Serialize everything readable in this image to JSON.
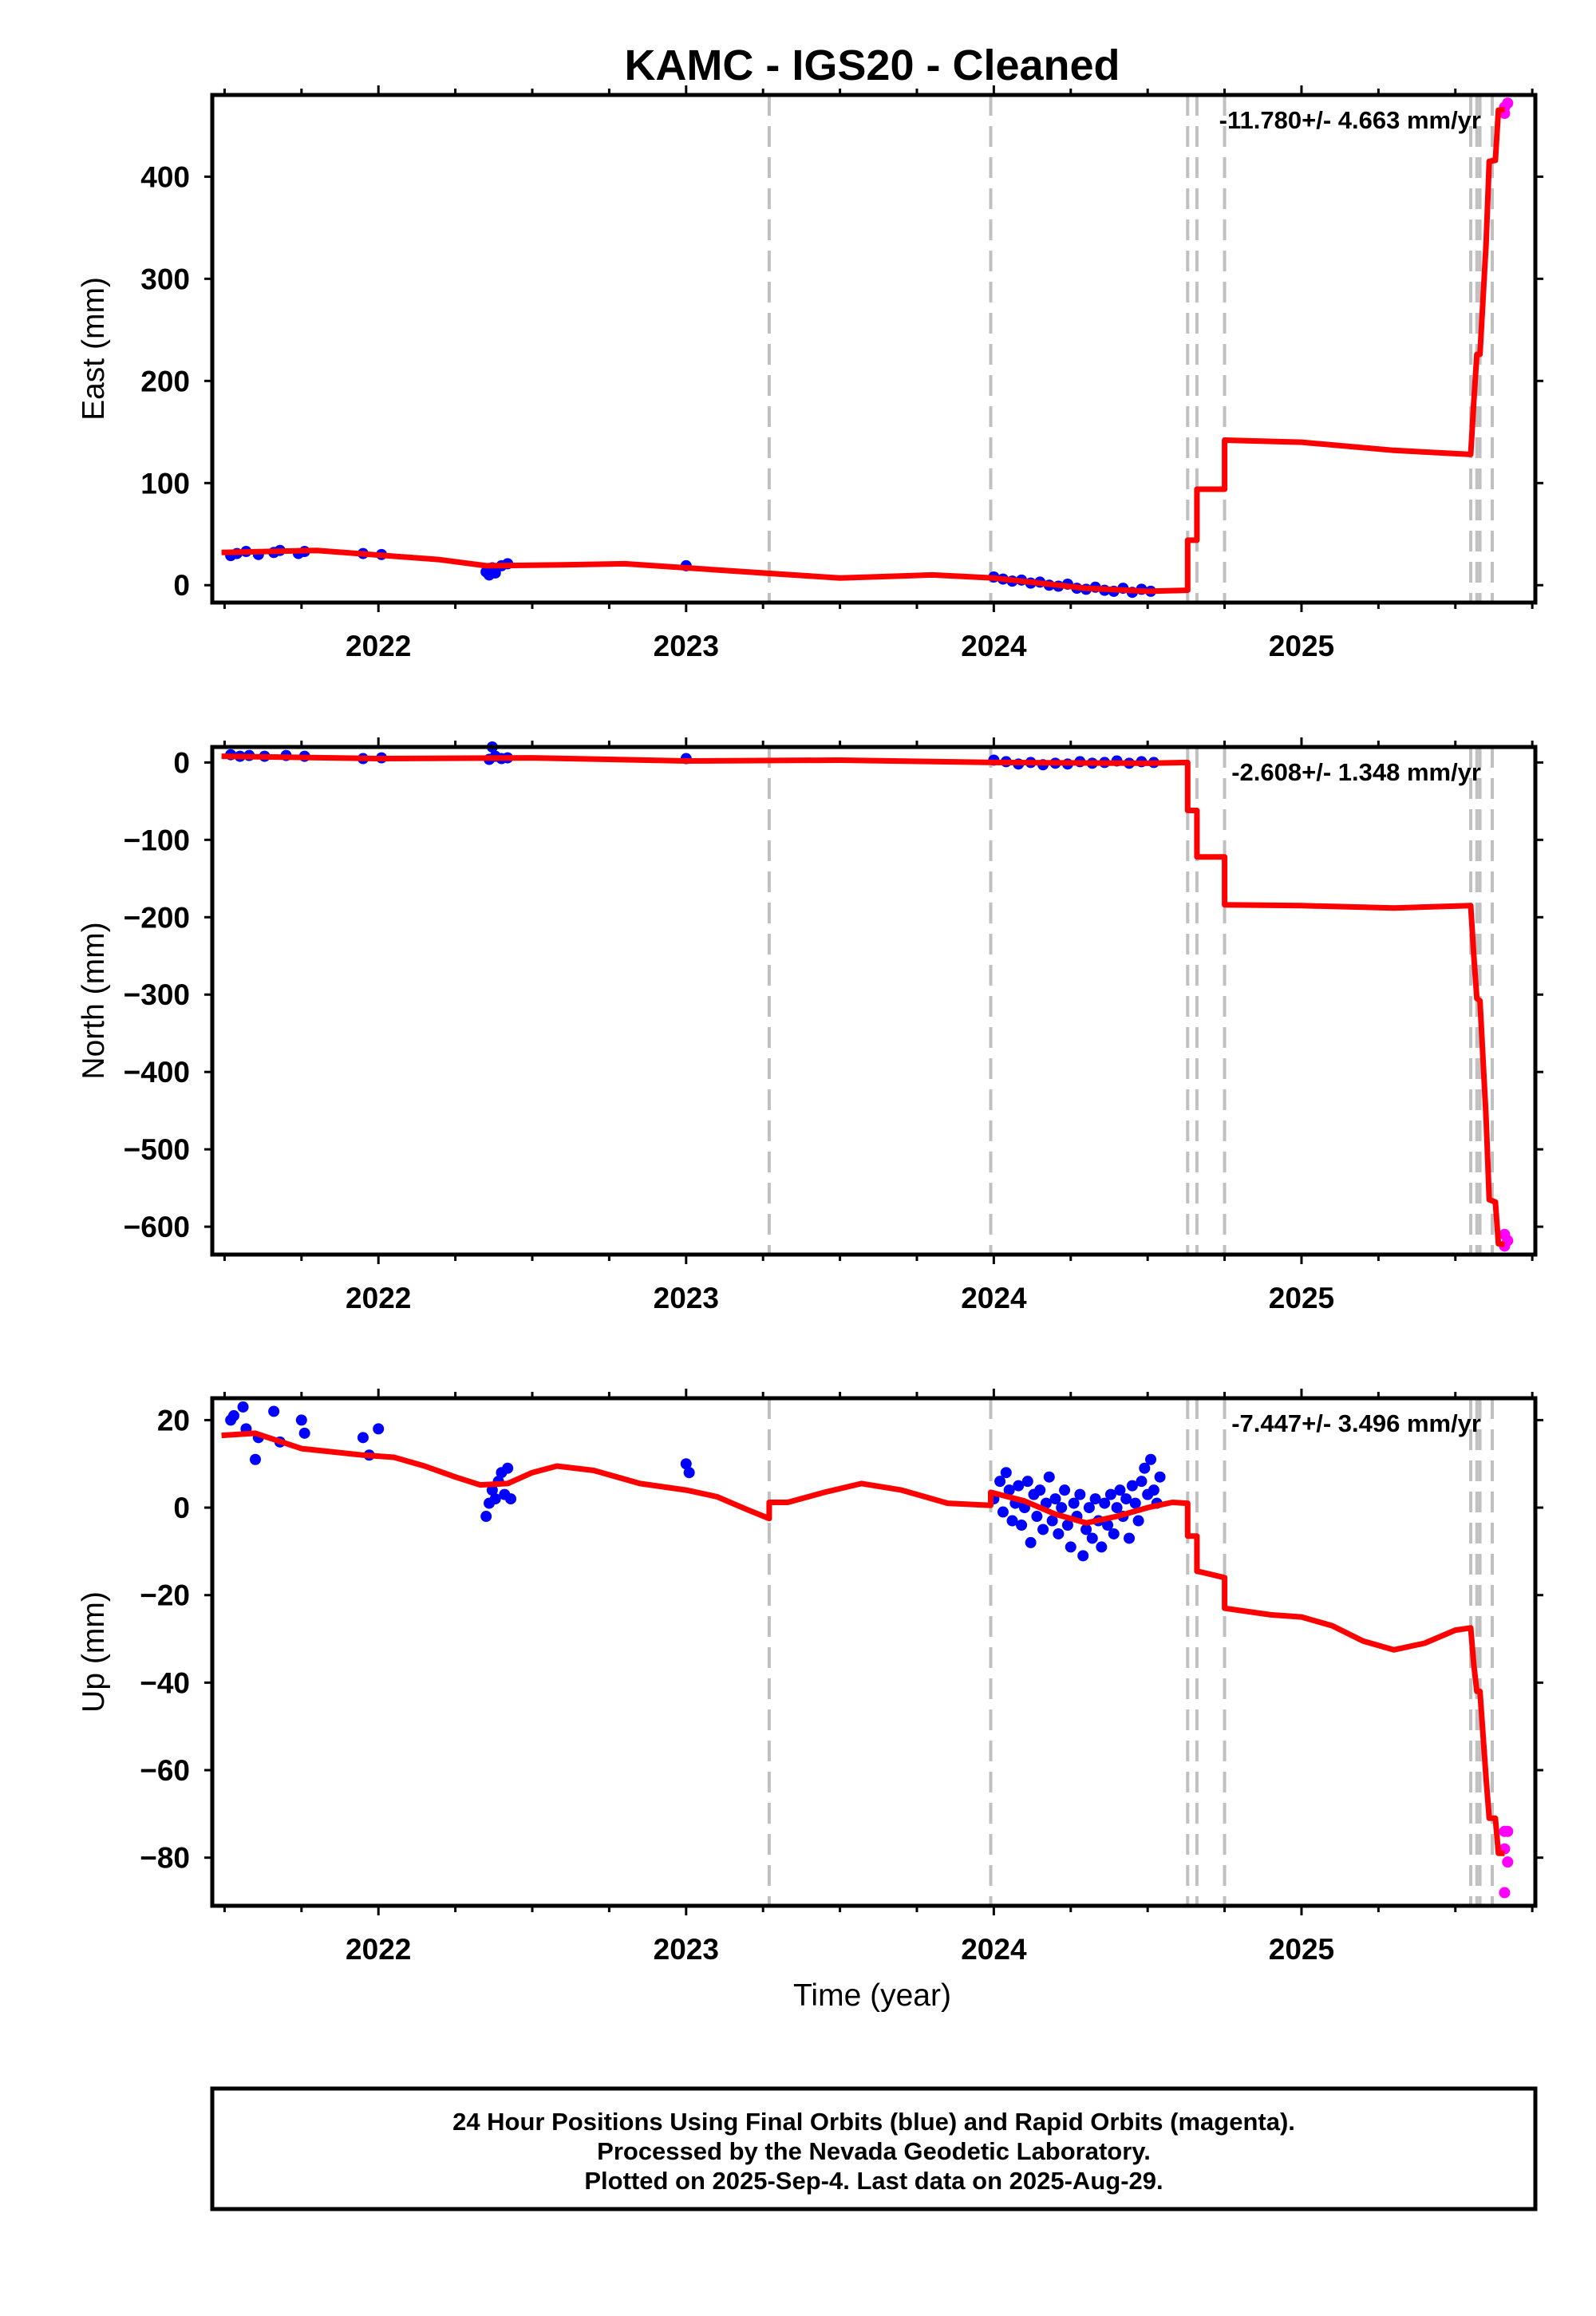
{
  "chart_data": {
    "title": "KAMC  - IGS20 - Cleaned",
    "type": "scatter",
    "xlabel": "Time (year)",
    "x_tick_labels": [
      "2022",
      "2023",
      "2024",
      "2025"
    ],
    "x_ticks": [
      2022,
      2023,
      2024,
      2025
    ],
    "xlim": [
      2021.46,
      2025.76
    ],
    "final_orbits_color": "#0000ff",
    "rapid_orbits_color": "#ff00ff",
    "model_color": "#ff0000",
    "break_line_color": "#c0c0c0",
    "breaks": [
      2023.27,
      2023.99,
      2024.63,
      2024.66,
      2024.75,
      2025.55,
      2025.57,
      2025.58,
      2025.62
    ],
    "panels": [
      {
        "ylabel": "East (mm)",
        "ylim": [
          -17,
          480
        ],
        "yticks": [
          0,
          100,
          200,
          300,
          400
        ],
        "ytick_labels": [
          "0",
          "100",
          "200",
          "300",
          "400"
        ],
        "rate_text": "-11.780+/- 4.663 mm/yr",
        "final_points": [
          [
            2021.52,
            29
          ],
          [
            2021.54,
            31
          ],
          [
            2021.57,
            33
          ],
          [
            2021.61,
            30
          ],
          [
            2021.66,
            32
          ],
          [
            2021.68,
            34
          ],
          [
            2021.74,
            31
          ],
          [
            2021.76,
            33
          ],
          [
            2021.95,
            31
          ],
          [
            2022.01,
            30
          ],
          [
            2022.35,
            13
          ],
          [
            2022.36,
            10
          ],
          [
            2022.37,
            17
          ],
          [
            2022.38,
            12
          ],
          [
            2022.4,
            19
          ],
          [
            2022.42,
            21
          ],
          [
            2023.0,
            19
          ],
          [
            2024.0,
            8
          ],
          [
            2024.03,
            6
          ],
          [
            2024.06,
            4
          ],
          [
            2024.09,
            5
          ],
          [
            2024.12,
            2
          ],
          [
            2024.15,
            3
          ],
          [
            2024.18,
            0
          ],
          [
            2024.21,
            -1
          ],
          [
            2024.24,
            1
          ],
          [
            2024.27,
            -3
          ],
          [
            2024.3,
            -4
          ],
          [
            2024.33,
            -2
          ],
          [
            2024.36,
            -5
          ],
          [
            2024.39,
            -6
          ],
          [
            2024.42,
            -3
          ],
          [
            2024.45,
            -7
          ],
          [
            2024.48,
            -4
          ],
          [
            2024.51,
            -6
          ]
        ],
        "rapid_points": [
          [
            2025.66,
            468
          ],
          [
            2025.67,
            472
          ],
          [
            2025.66,
            462
          ]
        ],
        "model": [
          [
            2021.49,
            32
          ],
          [
            2021.8,
            34
          ],
          [
            2022.2,
            25
          ],
          [
            2022.35,
            19
          ],
          [
            2022.6,
            20
          ],
          [
            2022.8,
            21
          ],
          [
            2023.1,
            15
          ],
          [
            2023.5,
            7
          ],
          [
            2023.8,
            10
          ],
          [
            2024.0,
            7
          ],
          [
            2024.3,
            -3
          ],
          [
            2024.5,
            -6
          ],
          [
            2024.63,
            -5
          ],
          [
            2024.63,
            44
          ],
          [
            2024.66,
            44
          ],
          [
            2024.66,
            94
          ],
          [
            2024.75,
            94
          ],
          [
            2024.75,
            142
          ],
          [
            2025.0,
            140
          ],
          [
            2025.3,
            132
          ],
          [
            2025.55,
            128
          ],
          [
            2025.56,
            180
          ],
          [
            2025.57,
            226
          ],
          [
            2025.58,
            226
          ],
          [
            2025.6,
            335
          ],
          [
            2025.61,
            415
          ],
          [
            2025.63,
            416
          ],
          [
            2025.64,
            465
          ],
          [
            2025.66,
            466
          ]
        ]
      },
      {
        "ylabel": "North (mm)",
        "ylim": [
          -636,
          20
        ],
        "yticks": [
          -600,
          -500,
          -400,
          -300,
          -200,
          -100,
          0
        ],
        "ytick_labels": [
          "−600",
          "−500",
          "−400",
          "−300",
          "−200",
          "−100",
          "0"
        ],
        "rate_text": "-2.608+/- 1.348 mm/yr",
        "final_points": [
          [
            2021.52,
            10
          ],
          [
            2021.55,
            8
          ],
          [
            2021.58,
            9
          ],
          [
            2021.63,
            8
          ],
          [
            2021.7,
            9
          ],
          [
            2021.76,
            8
          ],
          [
            2021.95,
            5
          ],
          [
            2022.01,
            6
          ],
          [
            2022.36,
            4
          ],
          [
            2022.37,
            20
          ],
          [
            2022.38,
            8
          ],
          [
            2022.4,
            5
          ],
          [
            2022.42,
            6
          ],
          [
            2023.0,
            5
          ],
          [
            2024.0,
            3
          ],
          [
            2024.04,
            1
          ],
          [
            2024.08,
            -2
          ],
          [
            2024.12,
            0
          ],
          [
            2024.16,
            -3
          ],
          [
            2024.2,
            -1
          ],
          [
            2024.24,
            -2
          ],
          [
            2024.28,
            1
          ],
          [
            2024.32,
            -1
          ],
          [
            2024.36,
            0
          ],
          [
            2024.4,
            2
          ],
          [
            2024.44,
            -1
          ],
          [
            2024.48,
            1
          ],
          [
            2024.52,
            0
          ]
        ],
        "rapid_points": [
          [
            2025.66,
            -610
          ],
          [
            2025.67,
            -618
          ],
          [
            2025.66,
            -625
          ]
        ],
        "model": [
          [
            2021.49,
            8
          ],
          [
            2022.0,
            5
          ],
          [
            2022.5,
            6
          ],
          [
            2023.0,
            2
          ],
          [
            2023.5,
            3
          ],
          [
            2024.0,
            0
          ],
          [
            2024.5,
            -1
          ],
          [
            2024.63,
            0
          ],
          [
            2024.63,
            -62
          ],
          [
            2024.66,
            -62
          ],
          [
            2024.66,
            -122
          ],
          [
            2024.75,
            -122
          ],
          [
            2024.75,
            -184
          ],
          [
            2025.0,
            -185
          ],
          [
            2025.3,
            -188
          ],
          [
            2025.55,
            -185
          ],
          [
            2025.56,
            -250
          ],
          [
            2025.57,
            -305
          ],
          [
            2025.58,
            -308
          ],
          [
            2025.6,
            -460
          ],
          [
            2025.61,
            -565
          ],
          [
            2025.63,
            -568
          ],
          [
            2025.64,
            -622
          ],
          [
            2025.66,
            -623
          ]
        ]
      },
      {
        "ylabel": "Up (mm)",
        "ylim": [
          -91,
          25
        ],
        "yticks": [
          -80,
          -60,
          -40,
          -20,
          0,
          20
        ],
        "ytick_labels": [
          "−80",
          "−60",
          "−40",
          "−20",
          "0",
          "20"
        ],
        "rate_text": "-7.447+/- 3.496 mm/yr",
        "final_points": [
          [
            2021.52,
            20
          ],
          [
            2021.53,
            21
          ],
          [
            2021.56,
            23
          ],
          [
            2021.57,
            18
          ],
          [
            2021.6,
            11
          ],
          [
            2021.61,
            16
          ],
          [
            2021.66,
            22
          ],
          [
            2021.68,
            15
          ],
          [
            2021.75,
            20
          ],
          [
            2021.76,
            17
          ],
          [
            2021.95,
            16
          ],
          [
            2021.97,
            12
          ],
          [
            2022.0,
            18
          ],
          [
            2022.35,
            -2
          ],
          [
            2022.36,
            1
          ],
          [
            2022.37,
            4
          ],
          [
            2022.38,
            2
          ],
          [
            2022.39,
            6
          ],
          [
            2022.4,
            8
          ],
          [
            2022.41,
            3
          ],
          [
            2022.42,
            9
          ],
          [
            2022.43,
            2
          ],
          [
            2023.0,
            10
          ],
          [
            2023.01,
            8
          ],
          [
            2024.0,
            2
          ],
          [
            2024.02,
            6
          ],
          [
            2024.03,
            -1
          ],
          [
            2024.04,
            8
          ],
          [
            2024.05,
            4
          ],
          [
            2024.06,
            -3
          ],
          [
            2024.07,
            1
          ],
          [
            2024.08,
            5
          ],
          [
            2024.09,
            -4
          ],
          [
            2024.1,
            0
          ],
          [
            2024.11,
            6
          ],
          [
            2024.12,
            -8
          ],
          [
            2024.13,
            3
          ],
          [
            2024.14,
            -2
          ],
          [
            2024.15,
            4
          ],
          [
            2024.16,
            -5
          ],
          [
            2024.17,
            1
          ],
          [
            2024.18,
            7
          ],
          [
            2024.19,
            -3
          ],
          [
            2024.2,
            2
          ],
          [
            2024.21,
            -6
          ],
          [
            2024.22,
            0
          ],
          [
            2024.23,
            4
          ],
          [
            2024.24,
            -4
          ],
          [
            2024.25,
            -9
          ],
          [
            2024.26,
            1
          ],
          [
            2024.27,
            -2
          ],
          [
            2024.28,
            3
          ],
          [
            2024.29,
            -11
          ],
          [
            2024.3,
            -5
          ],
          [
            2024.31,
            0
          ],
          [
            2024.32,
            -7
          ],
          [
            2024.33,
            2
          ],
          [
            2024.34,
            -3
          ],
          [
            2024.35,
            -9
          ],
          [
            2024.36,
            1
          ],
          [
            2024.37,
            -4
          ],
          [
            2024.38,
            3
          ],
          [
            2024.39,
            -6
          ],
          [
            2024.4,
            0
          ],
          [
            2024.41,
            4
          ],
          [
            2024.42,
            -2
          ],
          [
            2024.43,
            2
          ],
          [
            2024.44,
            -7
          ],
          [
            2024.45,
            5
          ],
          [
            2024.46,
            1
          ],
          [
            2024.47,
            -3
          ],
          [
            2024.48,
            6
          ],
          [
            2024.49,
            9
          ],
          [
            2024.5,
            3
          ],
          [
            2024.51,
            11
          ],
          [
            2024.52,
            4
          ],
          [
            2024.53,
            1
          ],
          [
            2024.54,
            7
          ]
        ],
        "rapid_points": [
          [
            2025.66,
            -74
          ],
          [
            2025.67,
            -74
          ],
          [
            2025.66,
            -78
          ],
          [
            2025.67,
            -81
          ],
          [
            2025.66,
            -88
          ]
        ],
        "model": [
          [
            2021.49,
            16.5
          ],
          [
            2021.6,
            17
          ],
          [
            2021.75,
            13.5
          ],
          [
            2021.95,
            12
          ],
          [
            2022.05,
            11.5
          ],
          [
            2022.15,
            9.5
          ],
          [
            2022.25,
            7
          ],
          [
            2022.33,
            5.2
          ],
          [
            2022.42,
            5.5
          ],
          [
            2022.5,
            8
          ],
          [
            2022.58,
            9.5
          ],
          [
            2022.7,
            8.5
          ],
          [
            2022.85,
            5.5
          ],
          [
            2023.0,
            4
          ],
          [
            2023.1,
            2.5
          ],
          [
            2023.2,
            -0.5
          ],
          [
            2023.27,
            -2.5
          ],
          [
            2023.27,
            1.2
          ],
          [
            2023.33,
            1.2
          ],
          [
            2023.45,
            3.5
          ],
          [
            2023.57,
            5.5
          ],
          [
            2023.7,
            4
          ],
          [
            2023.85,
            1
          ],
          [
            2023.99,
            0.5
          ],
          [
            2023.99,
            3.5
          ],
          [
            2024.1,
            1.5
          ],
          [
            2024.2,
            -1.5
          ],
          [
            2024.3,
            -3.5
          ],
          [
            2024.4,
            -2
          ],
          [
            2024.5,
            0
          ],
          [
            2024.58,
            1.2
          ],
          [
            2024.63,
            1
          ],
          [
            2024.63,
            -6.5
          ],
          [
            2024.66,
            -6.5
          ],
          [
            2024.66,
            -14.5
          ],
          [
            2024.75,
            -16
          ],
          [
            2024.75,
            -23
          ],
          [
            2024.9,
            -24.5
          ],
          [
            2025.0,
            -25
          ],
          [
            2025.1,
            -27
          ],
          [
            2025.2,
            -30.5
          ],
          [
            2025.3,
            -32.5
          ],
          [
            2025.4,
            -31
          ],
          [
            2025.5,
            -28
          ],
          [
            2025.55,
            -27.5
          ],
          [
            2025.56,
            -36
          ],
          [
            2025.57,
            -42
          ],
          [
            2025.58,
            -42
          ],
          [
            2025.6,
            -62
          ],
          [
            2025.61,
            -71
          ],
          [
            2025.63,
            -71
          ],
          [
            2025.64,
            -79
          ],
          [
            2025.66,
            -79
          ]
        ]
      }
    ]
  },
  "footer": {
    "line1": "24 Hour Positions Using Final Orbits (blue) and Rapid Orbits (magenta).",
    "line2": "Processed by the Nevada Geodetic Laboratory.",
    "line3": "Plotted on 2025-Sep-4. Last data on 2025-Aug-29."
  }
}
